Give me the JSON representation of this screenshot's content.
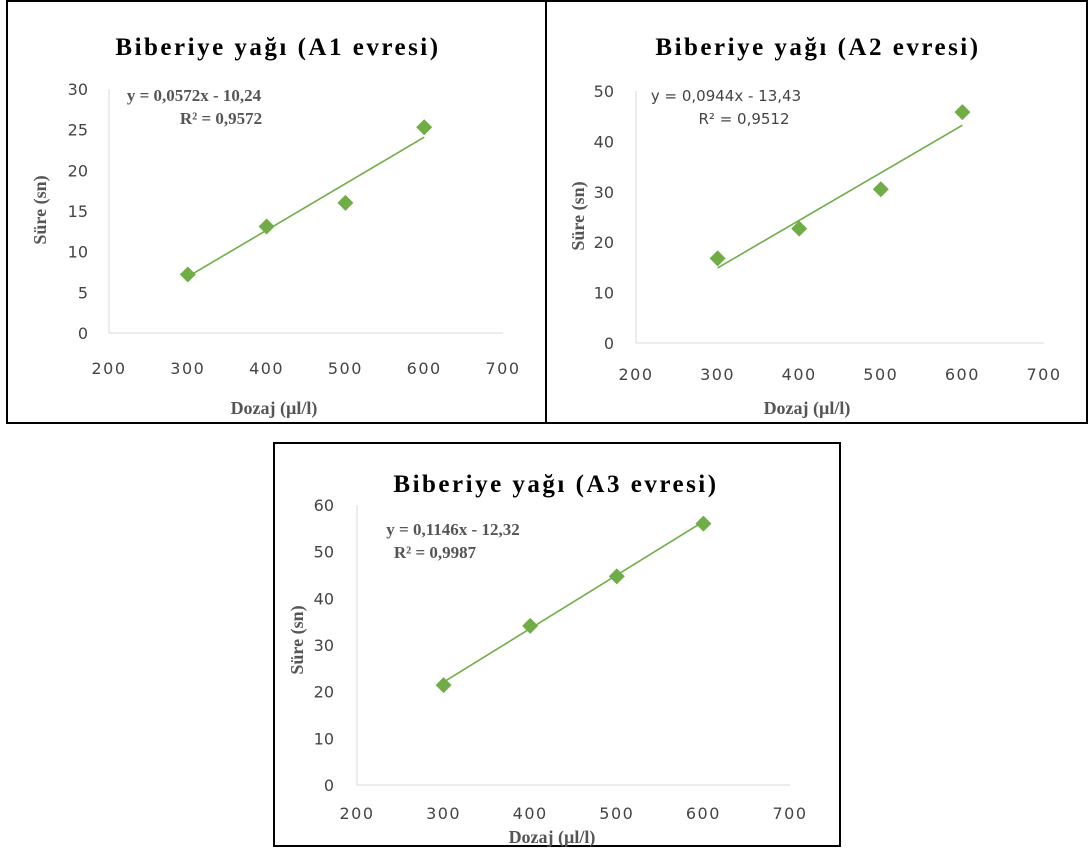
{
  "chart_data": [
    {
      "type": "scatter",
      "title": "Biberiye yağı (A1 evresi)",
      "xlabel": "Dozaj (µl/l)",
      "ylabel": "Süre (sn)",
      "xlim": [
        200,
        700
      ],
      "ylim": [
        0,
        30
      ],
      "x_ticks": [
        "200",
        "300",
        "400",
        "500",
        "600",
        "700"
      ],
      "y_ticks": [
        "0",
        "5",
        "10",
        "15",
        "20",
        "25",
        "30"
      ],
      "points": [
        {
          "x": 300,
          "y": 7.2
        },
        {
          "x": 400,
          "y": 13.1
        },
        {
          "x": 500,
          "y": 16.0
        },
        {
          "x": 600,
          "y": 25.3
        }
      ],
      "trendline": {
        "slope": 0.0572,
        "intercept": -10.24,
        "x_range": [
          300,
          600
        ]
      },
      "equation": "y = 0,0572x - 10,24",
      "r_squared": "R² = 0,9572",
      "marker_color": "#70ad47",
      "line_color": "#70ad47",
      "grid": false
    },
    {
      "type": "scatter",
      "title": "Biberiye yağı (A2 evresi)",
      "xlabel": "Dozaj (µl/l)",
      "ylabel": "Süre (sn)",
      "xlim": [
        200,
        700
      ],
      "ylim": [
        0,
        50
      ],
      "x_ticks": [
        "200",
        "300",
        "400",
        "500",
        "600",
        "700"
      ],
      "y_ticks": [
        "0",
        "10",
        "20",
        "30",
        "40",
        "50"
      ],
      "points": [
        {
          "x": 300,
          "y": 16.8
        },
        {
          "x": 400,
          "y": 22.7
        },
        {
          "x": 500,
          "y": 30.5
        },
        {
          "x": 600,
          "y": 45.8
        }
      ],
      "trendline": {
        "slope": 0.0944,
        "intercept": -13.43,
        "x_range": [
          300,
          600
        ]
      },
      "equation": "y = 0,0944x - 13,43",
      "r_squared": "R² = 0,9512",
      "marker_color": "#70ad47",
      "line_color": "#70ad47",
      "grid": false
    },
    {
      "type": "scatter",
      "title": "Biberiye yağı (A3 evresi)",
      "xlabel": "Dozaj (µl/l)",
      "ylabel": "Süre (sn)",
      "xlim": [
        200,
        700
      ],
      "ylim": [
        0,
        60
      ],
      "x_ticks": [
        "200",
        "300",
        "400",
        "500",
        "600",
        "700"
      ],
      "y_ticks": [
        "0",
        "10",
        "20",
        "30",
        "40",
        "50",
        "60"
      ],
      "points": [
        {
          "x": 300,
          "y": 21.4
        },
        {
          "x": 400,
          "y": 34.1
        },
        {
          "x": 500,
          "y": 44.7
        },
        {
          "x": 600,
          "y": 56.0
        }
      ],
      "trendline": {
        "slope": 0.1146,
        "intercept": -12.32,
        "x_range": [
          300,
          600
        ]
      },
      "equation": "y = 0,1146x - 12,32",
      "r_squared": "R² = 0,9987",
      "marker_color": "#70ad47",
      "line_color": "#70ad47",
      "grid": false
    }
  ]
}
